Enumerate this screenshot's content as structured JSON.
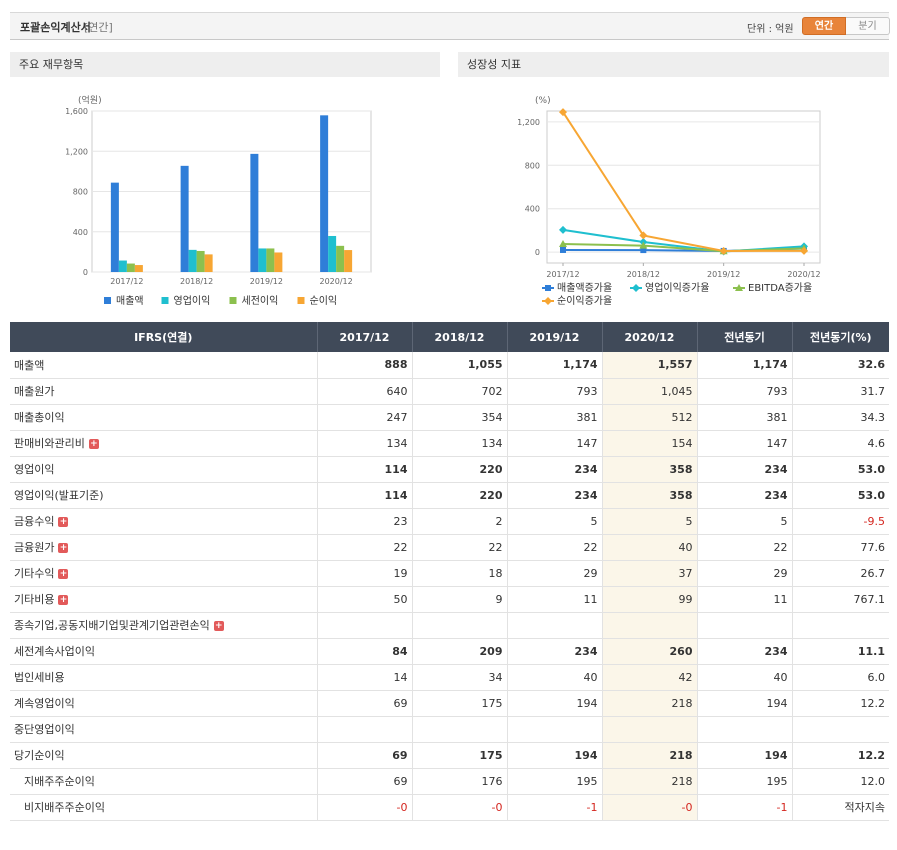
{
  "header": {
    "title": "포괄손익계산서",
    "period": "[연간]",
    "unit": "단위 : 억원",
    "toggle_annual": "연간",
    "toggle_quarter": "분기"
  },
  "panel1": {
    "title": "주요 재무항목"
  },
  "panel2": {
    "title": "성장성 지표"
  },
  "chart_data": [
    {
      "type": "bar",
      "ylabel": "(억원)",
      "categories": [
        "2017/12",
        "2018/12",
        "2019/12",
        "2020/12"
      ],
      "ylim": [
        0,
        1600
      ],
      "yticks": [
        "0",
        "400",
        "800",
        "1,200",
        "1,600"
      ],
      "grid": true,
      "legend_position": "bottom",
      "series": [
        {
          "name": "매출액",
          "values": [
            888,
            1055,
            1174,
            1557
          ],
          "color": "#2f7ed8"
        },
        {
          "name": "영업이익",
          "values": [
            114,
            220,
            234,
            358
          ],
          "color": "#1fbfcf"
        },
        {
          "name": "세전이익",
          "values": [
            84,
            209,
            234,
            260
          ],
          "color": "#8cc04e"
        },
        {
          "name": "순이익",
          "values": [
            69,
            175,
            194,
            218
          ],
          "color": "#f7a633"
        }
      ]
    },
    {
      "type": "line",
      "ylabel": "(%)",
      "categories": [
        "2017/12",
        "2018/12",
        "2019/12",
        "2020/12"
      ],
      "ylim": [
        -100,
        1300
      ],
      "yticks": [
        "0",
        "400",
        "800",
        "1,200"
      ],
      "grid": true,
      "legend_position": "bottom",
      "series": [
        {
          "name": "매출액증가율",
          "values": [
            20,
            19,
            11,
            33
          ],
          "color": "#2f7ed8",
          "marker": "square"
        },
        {
          "name": "영업이익증가율",
          "values": [
            205,
            93,
            6,
            53
          ],
          "color": "#1fbfcf",
          "marker": "diamond"
        },
        {
          "name": "EBITDA증가율",
          "values": [
            75,
            60,
            8,
            35
          ],
          "color": "#8cc04e",
          "marker": "triangle"
        },
        {
          "name": "순이익증가율",
          "values": [
            1290,
            154,
            11,
            12
          ],
          "color": "#f7a633",
          "marker": "diamond"
        }
      ]
    }
  ],
  "table": {
    "headers": [
      "IFRS(연결)",
      "2017/12",
      "2018/12",
      "2019/12",
      "2020/12",
      "전년동기",
      "전년동기(%)"
    ],
    "rows": [
      {
        "label": "매출액",
        "values": [
          "888",
          "1,055",
          "1,174",
          "1,557",
          "1,174",
          "32.6"
        ],
        "bold": true,
        "plus": false
      },
      {
        "label": "매출원가",
        "values": [
          "640",
          "702",
          "793",
          "1,045",
          "793",
          "31.7"
        ],
        "bold": false,
        "plus": false
      },
      {
        "label": "매출총이익",
        "values": [
          "247",
          "354",
          "381",
          "512",
          "381",
          "34.3"
        ],
        "bold": false,
        "plus": false
      },
      {
        "label": "판매비와관리비",
        "values": [
          "134",
          "134",
          "147",
          "154",
          "147",
          "4.6"
        ],
        "bold": false,
        "plus": true
      },
      {
        "label": "영업이익",
        "values": [
          "114",
          "220",
          "234",
          "358",
          "234",
          "53.0"
        ],
        "bold": true,
        "plus": false
      },
      {
        "label": "영업이익(발표기준)",
        "values": [
          "114",
          "220",
          "234",
          "358",
          "234",
          "53.0"
        ],
        "bold": true,
        "plus": false
      },
      {
        "label": "금융수익",
        "values": [
          "23",
          "2",
          "5",
          "5",
          "5",
          "-9.5"
        ],
        "bold": false,
        "plus": true
      },
      {
        "label": "금융원가",
        "values": [
          "22",
          "22",
          "22",
          "40",
          "22",
          "77.6"
        ],
        "bold": false,
        "plus": true
      },
      {
        "label": "기타수익",
        "values": [
          "19",
          "18",
          "29",
          "37",
          "29",
          "26.7"
        ],
        "bold": false,
        "plus": true
      },
      {
        "label": "기타비용",
        "values": [
          "50",
          "9",
          "11",
          "99",
          "11",
          "767.1"
        ],
        "bold": false,
        "plus": true
      },
      {
        "label": "종속기업,공동지배기업및관계기업관련손익",
        "values": [
          "",
          "",
          "",
          "",
          "",
          ""
        ],
        "bold": false,
        "plus": true
      },
      {
        "label": "세전계속사업이익",
        "values": [
          "84",
          "209",
          "234",
          "260",
          "234",
          "11.1"
        ],
        "bold": true,
        "plus": false
      },
      {
        "label": "법인세비용",
        "values": [
          "14",
          "34",
          "40",
          "42",
          "40",
          "6.0"
        ],
        "bold": false,
        "plus": false
      },
      {
        "label": "계속영업이익",
        "values": [
          "69",
          "175",
          "194",
          "218",
          "194",
          "12.2"
        ],
        "bold": false,
        "plus": false
      },
      {
        "label": "중단영업이익",
        "values": [
          "",
          "",
          "",
          "",
          "",
          ""
        ],
        "bold": false,
        "plus": false
      },
      {
        "label": "당기순이익",
        "values": [
          "69",
          "175",
          "194",
          "218",
          "194",
          "12.2"
        ],
        "bold": true,
        "plus": false
      },
      {
        "label": "지배주주순이익",
        "values": [
          "69",
          "176",
          "195",
          "218",
          "195",
          "12.0"
        ],
        "bold": false,
        "plus": false,
        "sub": true
      },
      {
        "label": "비지배주주순이익",
        "values": [
          "-0",
          "-0",
          "-1",
          "-0",
          "-1",
          "적자지속"
        ],
        "bold": false,
        "plus": false,
        "sub": true
      }
    ]
  }
}
